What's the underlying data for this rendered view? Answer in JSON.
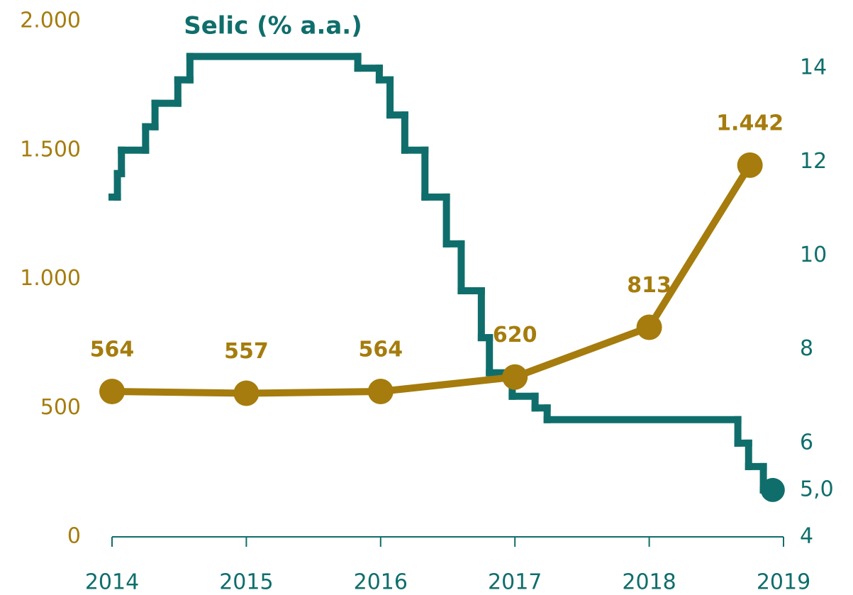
{
  "chart_data": {
    "type": "line",
    "title": "Selic (% a.a.)",
    "xlim": [
      2014,
      2019
    ],
    "xticks": [
      2014,
      2015,
      2016,
      2017,
      2018,
      2019
    ],
    "ylim": [
      0,
      2000
    ],
    "yticks": [
      0,
      500,
      {
        "value": 1000,
        "label": "1.000"
      },
      {
        "value": 1500,
        "label": "1.500"
      },
      {
        "value": 2000,
        "label": "2.000"
      }
    ],
    "y2lim": [
      4,
      15
    ],
    "y2ticks": [
      4,
      {
        "value": 5,
        "label": "5,0"
      },
      6,
      8,
      10,
      12,
      14
    ],
    "grid": false,
    "series": [
      {
        "color": "#a57c0d",
        "marker": true,
        "x": [
          2014,
          2015,
          2016,
          2017,
          2018,
          2018.75
        ],
        "values": [
          564,
          557,
          564,
          620,
          813,
          1442
        ],
        "value_labels": [
          "564",
          "557",
          "564",
          "620",
          "813",
          "1.442"
        ]
      },
      {
        "name": "Selic (% a.a.)",
        "color": "#0f6e6b",
        "axis": "y2",
        "step": "post",
        "end_marker": true,
        "x": [
          2014.0,
          2014.04,
          2014.07,
          2014.25,
          2014.32,
          2014.49,
          2014.58,
          2015.83,
          2015.99,
          2016.07,
          2016.18,
          2016.33,
          2016.49,
          2016.6,
          2016.75,
          2016.81,
          2016.98,
          2017.15,
          2017.24,
          2018.66,
          2018.74,
          2018.85,
          2018.92
        ],
        "values": [
          11.25,
          11.75,
          12.25,
          12.75,
          13.25,
          13.75,
          14.25,
          14.0,
          13.75,
          13.0,
          12.25,
          11.25,
          10.25,
          9.25,
          8.25,
          7.5,
          7.0,
          6.75,
          6.5,
          6.0,
          5.5,
          5.0,
          5.0
        ]
      }
    ]
  }
}
